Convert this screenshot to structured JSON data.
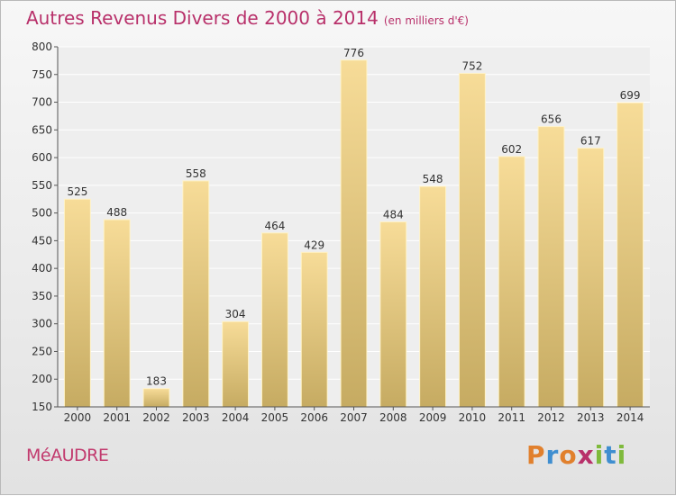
{
  "chart_data": {
    "type": "bar",
    "title": "Autres Revenus Divers de 2000 à 2014",
    "subtitle": "(en milliers d'€)",
    "categories": [
      "2000",
      "2001",
      "2002",
      "2003",
      "2004",
      "2005",
      "2006",
      "2007",
      "2008",
      "2009",
      "2010",
      "2011",
      "2012",
      "2013",
      "2014"
    ],
    "values": [
      525,
      488,
      183,
      558,
      304,
      464,
      429,
      776,
      484,
      548,
      752,
      602,
      656,
      617,
      699
    ],
    "ylim": [
      150,
      800
    ],
    "yticks": [
      150,
      200,
      250,
      300,
      350,
      400,
      450,
      500,
      550,
      600,
      650,
      700,
      750,
      800
    ],
    "grid": true,
    "colors": {
      "bar_top": "#f7dc98",
      "bar_bottom": "#c6ab62",
      "grid": "#ffffff",
      "title": "#b8306a"
    }
  },
  "footer": {
    "commune": "MéAUDRE",
    "logo": "Proxiti",
    "logo_colors": [
      "#e1802d",
      "#3f8ed0",
      "#e1802d",
      "#b8306a",
      "#7fba3c",
      "#3f8ed0",
      "#7fba3c"
    ]
  }
}
